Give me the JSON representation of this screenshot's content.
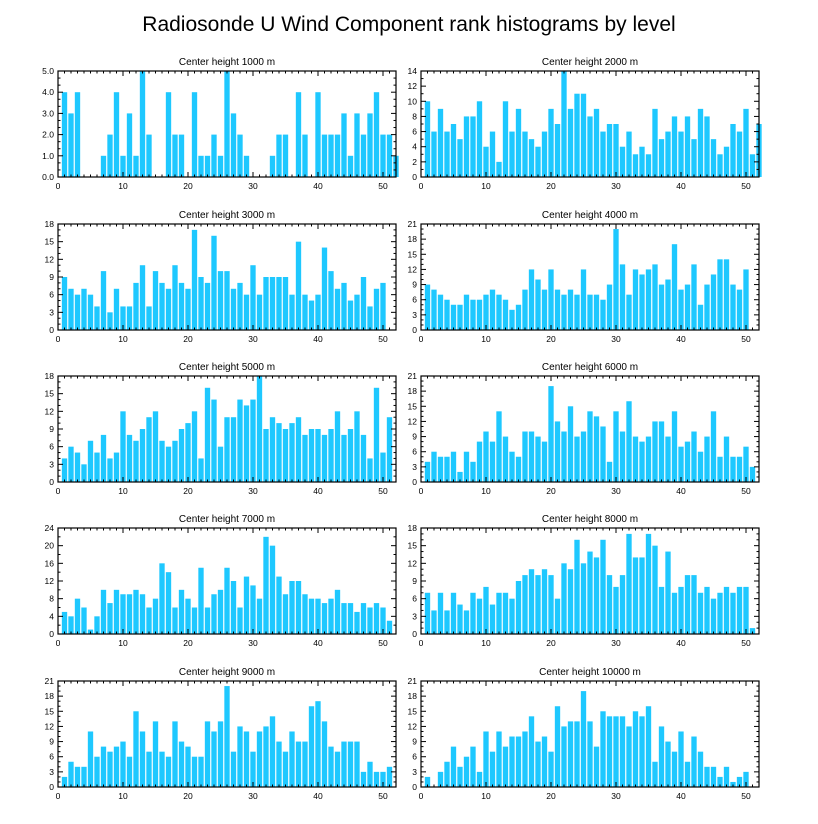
{
  "page": {
    "title": "Radiosonde U Wind Component rank histograms by level"
  },
  "colors": {
    "bar": "#1EC8FF",
    "frame": "#000000",
    "background": "#ffffff"
  },
  "chart_data": [
    {
      "type": "bar",
      "title": "Center height 1000 m",
      "x_start": 0,
      "xlim": [
        0,
        52
      ],
      "xticks": [
        0,
        10,
        20,
        30,
        40,
        50
      ],
      "ylim": [
        0,
        5
      ],
      "yticks": [
        0,
        1,
        2,
        3,
        4,
        5
      ],
      "ytick_labels": [
        "0.0",
        "1.0",
        "2.0",
        "3.0",
        "4.0",
        "5.0"
      ],
      "values": [
        0,
        4,
        3,
        4,
        0,
        0,
        0,
        1,
        2,
        4,
        1,
        3,
        1,
        5,
        2,
        0,
        0,
        4,
        2,
        2,
        0,
        4,
        1,
        1,
        2,
        1,
        5,
        3,
        2,
        1,
        0,
        0,
        0,
        1,
        2,
        2,
        0,
        4,
        2,
        0,
        4,
        2,
        2,
        2,
        3,
        1,
        3,
        2,
        3,
        4,
        2,
        2,
        1
      ]
    },
    {
      "type": "bar",
      "title": "Center height 2000 m",
      "x_start": 0,
      "xlim": [
        0,
        52
      ],
      "xticks": [
        0,
        10,
        20,
        30,
        40,
        50
      ],
      "ylim": [
        0,
        14
      ],
      "yticks": [
        0,
        2,
        4,
        6,
        8,
        10,
        12,
        14
      ],
      "ytick_labels": [
        "0",
        "2",
        "4",
        "6",
        "8",
        "10",
        "12",
        "14"
      ],
      "values": [
        0,
        10,
        6,
        9,
        6,
        7,
        5,
        8,
        8,
        10,
        4,
        6,
        2,
        10,
        6,
        9,
        6,
        5,
        4,
        6,
        9,
        7,
        14,
        9,
        11,
        11,
        8,
        9,
        6,
        7,
        7,
        4,
        6,
        3,
        4,
        3,
        9,
        5,
        6,
        8,
        6,
        8,
        5,
        9,
        8,
        5,
        3,
        4,
        7,
        6,
        9,
        3,
        7
      ]
    },
    {
      "type": "bar",
      "title": "Center height 3000 m",
      "x_start": 0,
      "xlim": [
        0,
        52
      ],
      "xticks": [
        0,
        10,
        20,
        30,
        40,
        50
      ],
      "ylim": [
        0,
        18
      ],
      "yticks": [
        0,
        3,
        6,
        9,
        12,
        15,
        18
      ],
      "ytick_labels": [
        "0",
        "3",
        "6",
        "9",
        "12",
        "15",
        "18"
      ],
      "values": [
        0,
        9,
        7,
        6,
        7,
        6,
        4,
        10,
        3,
        7,
        4,
        4,
        8,
        11,
        4,
        10,
        8,
        7,
        11,
        8,
        7,
        17,
        9,
        8,
        16,
        10,
        10,
        7,
        8,
        6,
        11,
        6,
        9,
        9,
        9,
        9,
        6,
        15,
        6,
        5,
        6,
        14,
        10,
        7,
        8,
        5,
        6,
        9,
        4,
        7,
        8,
        0,
        0
      ]
    },
    {
      "type": "bar",
      "title": "Center height 4000 m",
      "x_start": 0,
      "xlim": [
        0,
        52
      ],
      "xticks": [
        0,
        10,
        20,
        30,
        40,
        50
      ],
      "ylim": [
        0,
        21
      ],
      "yticks": [
        0,
        3,
        6,
        9,
        12,
        15,
        18,
        21
      ],
      "ytick_labels": [
        "0",
        "3",
        "6",
        "9",
        "12",
        "15",
        "18",
        "21"
      ],
      "values": [
        0,
        9,
        8,
        7,
        6,
        5,
        5,
        7,
        6,
        6,
        7,
        8,
        7,
        6,
        4,
        5,
        8,
        12,
        10,
        8,
        12,
        8,
        7,
        8,
        7,
        12,
        7,
        7,
        6,
        9,
        20,
        13,
        7,
        12,
        11,
        12,
        13,
        9,
        10,
        17,
        8,
        9,
        13,
        5,
        9,
        11,
        14,
        14,
        9,
        8,
        12,
        0,
        0
      ]
    },
    {
      "type": "bar",
      "title": "Center height 5000 m",
      "x_start": 0,
      "xlim": [
        0,
        52
      ],
      "xticks": [
        0,
        10,
        20,
        30,
        40,
        50
      ],
      "ylim": [
        0,
        18
      ],
      "yticks": [
        0,
        3,
        6,
        9,
        12,
        15,
        18
      ],
      "ytick_labels": [
        "0",
        "3",
        "6",
        "9",
        "12",
        "15",
        "18"
      ],
      "values": [
        0,
        4,
        6,
        5,
        3,
        7,
        5,
        8,
        4,
        5,
        12,
        8,
        7,
        9,
        11,
        12,
        7,
        6,
        7,
        9,
        10,
        12,
        4,
        16,
        14,
        6,
        11,
        11,
        14,
        13,
        14,
        18,
        9,
        11,
        10,
        9,
        10,
        11,
        8,
        9,
        9,
        8,
        9,
        12,
        8,
        9,
        12,
        8,
        4,
        16,
        5,
        11,
        0
      ]
    },
    {
      "type": "bar",
      "title": "Center height 6000 m",
      "x_start": 0,
      "xlim": [
        0,
        52
      ],
      "xticks": [
        0,
        10,
        20,
        30,
        40,
        50
      ],
      "ylim": [
        0,
        21
      ],
      "yticks": [
        0,
        3,
        6,
        9,
        12,
        15,
        18,
        21
      ],
      "ytick_labels": [
        "0",
        "3",
        "6",
        "9",
        "12",
        "15",
        "18",
        "21"
      ],
      "values": [
        0,
        4,
        6,
        5,
        5,
        6,
        2,
        6,
        4,
        8,
        10,
        8,
        14,
        9,
        6,
        5,
        10,
        10,
        9,
        8,
        19,
        12,
        10,
        15,
        9,
        10,
        14,
        13,
        11,
        4,
        14,
        10,
        16,
        9,
        8,
        9,
        12,
        12,
        9,
        14,
        7,
        8,
        10,
        6,
        9,
        14,
        5,
        9,
        5,
        5,
        7,
        3,
        0
      ]
    },
    {
      "type": "bar",
      "title": "Center height 7000 m",
      "x_start": 0,
      "xlim": [
        0,
        52
      ],
      "xticks": [
        0,
        10,
        20,
        30,
        40,
        50
      ],
      "ylim": [
        0,
        24
      ],
      "yticks": [
        0,
        4,
        8,
        12,
        16,
        20,
        24
      ],
      "ytick_labels": [
        "0",
        "4",
        "8",
        "12",
        "16",
        "20",
        "24"
      ],
      "values": [
        0,
        5,
        4,
        8,
        6,
        1,
        4,
        10,
        7,
        10,
        9,
        9,
        10,
        9,
        6,
        8,
        16,
        14,
        6,
        10,
        8,
        6,
        15,
        6,
        9,
        10,
        15,
        12,
        6,
        13,
        11,
        8,
        22,
        20,
        13,
        9,
        12,
        12,
        9,
        8,
        8,
        7,
        8,
        10,
        7,
        7,
        5,
        7,
        6,
        7,
        6,
        3,
        0
      ]
    },
    {
      "type": "bar",
      "title": "Center height 8000 m",
      "x_start": 0,
      "xlim": [
        0,
        52
      ],
      "xticks": [
        0,
        10,
        20,
        30,
        40,
        50
      ],
      "ylim": [
        0,
        18
      ],
      "yticks": [
        0,
        3,
        6,
        9,
        12,
        15,
        18
      ],
      "ytick_labels": [
        "0",
        "3",
        "6",
        "9",
        "12",
        "15",
        "18"
      ],
      "values": [
        0,
        7,
        4,
        7,
        4,
        7,
        5,
        4,
        7,
        6,
        8,
        5,
        7,
        7,
        6,
        9,
        10,
        11,
        10,
        11,
        10,
        6,
        12,
        11,
        16,
        12,
        14,
        13,
        16,
        10,
        8,
        10,
        17,
        13,
        13,
        17,
        15,
        8,
        14,
        7,
        8,
        10,
        10,
        7,
        8,
        6,
        7,
        8,
        7,
        8,
        8,
        1,
        0
      ]
    },
    {
      "type": "bar",
      "title": "Center height 9000 m",
      "x_start": 0,
      "xlim": [
        0,
        52
      ],
      "xticks": [
        0,
        10,
        20,
        30,
        40,
        50
      ],
      "ylim": [
        0,
        21
      ],
      "yticks": [
        0,
        3,
        6,
        9,
        12,
        15,
        18,
        21
      ],
      "ytick_labels": [
        "0",
        "3",
        "6",
        "9",
        "12",
        "15",
        "18",
        "21"
      ],
      "values": [
        0,
        2,
        5,
        4,
        4,
        11,
        6,
        8,
        7,
        8,
        9,
        6,
        15,
        11,
        7,
        13,
        7,
        6,
        13,
        9,
        8,
        6,
        6,
        13,
        11,
        13,
        20,
        7,
        12,
        11,
        7,
        11,
        12,
        14,
        9,
        7,
        11,
        9,
        9,
        16,
        17,
        13,
        8,
        7,
        9,
        9,
        9,
        3,
        5,
        3,
        3,
        4,
        0
      ]
    },
    {
      "type": "bar",
      "title": "Center height 10000 m",
      "x_start": 0,
      "xlim": [
        0,
        52
      ],
      "xticks": [
        0,
        10,
        20,
        30,
        40,
        50
      ],
      "ylim": [
        0,
        21
      ],
      "yticks": [
        0,
        3,
        6,
        9,
        12,
        15,
        18,
        21
      ],
      "ytick_labels": [
        "0",
        "3",
        "6",
        "9",
        "12",
        "15",
        "18",
        "21"
      ],
      "values": [
        0,
        2,
        0,
        3,
        5,
        8,
        4,
        6,
        8,
        3,
        11,
        7,
        11,
        8,
        10,
        10,
        11,
        14,
        9,
        10,
        7,
        16,
        12,
        13,
        13,
        19,
        13,
        8,
        15,
        14,
        14,
        14,
        12,
        15,
        14,
        16,
        5,
        12,
        9,
        7,
        11,
        5,
        10,
        7,
        4,
        4,
        2,
        4,
        1,
        2,
        3,
        0,
        0
      ]
    }
  ]
}
